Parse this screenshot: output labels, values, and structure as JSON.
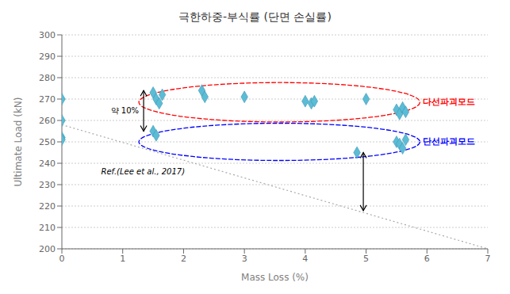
{
  "chart_data": {
    "type": "scatter",
    "title": "극한하중-부식률 (단면 손실률)",
    "xlabel": "Mass Loss (%)",
    "ylabel": "Ultimate Load (kN)",
    "xlim": [
      0,
      7
    ],
    "ylim": [
      200,
      300
    ],
    "xticks": [
      0,
      1,
      2,
      3,
      4,
      5,
      6,
      7
    ],
    "yticks": [
      200,
      210,
      220,
      230,
      240,
      250,
      260,
      270,
      280,
      290,
      300
    ],
    "grid": true,
    "series": [
      {
        "type": "scatter",
        "color": "#5BBCD6",
        "marker": "diamond",
        "x": [
          0,
          0,
          0,
          0
        ],
        "values": [
          270,
          260,
          252,
          251
        ]
      },
      {
        "type": "scatter",
        "color": "#5BBCD6",
        "marker": "diamond",
        "x": [
          1.5,
          1.55,
          1.6,
          1.65,
          2.3,
          2.35,
          3.0,
          4.0,
          4.1,
          4.15,
          5.0,
          5.5,
          5.55,
          5.6,
          5.65
        ],
        "values": [
          273,
          270,
          268,
          272,
          274,
          271,
          271,
          269,
          268,
          269,
          270,
          265,
          263,
          266,
          264
        ]
      },
      {
        "type": "scatter",
        "color": "#5BBCD6",
        "marker": "diamond",
        "x": [
          1.5,
          1.55,
          4.85,
          5.5,
          5.55,
          5.6,
          5.65
        ],
        "values": [
          255,
          253,
          245,
          250,
          249,
          247,
          251
        ]
      },
      {
        "type": "line",
        "color": "#aaaaaa",
        "line_style": "dotted",
        "x": [
          0,
          7
        ],
        "values": [
          258,
          200
        ]
      }
    ],
    "annotations": [
      {
        "text": "Ref.(Lee et al., 2017)"
      },
      {
        "text": "약 10%"
      },
      {
        "text": "다선파괴모드",
        "color": "red"
      },
      {
        "text": "단선파괴모드",
        "color": "blue"
      }
    ]
  }
}
